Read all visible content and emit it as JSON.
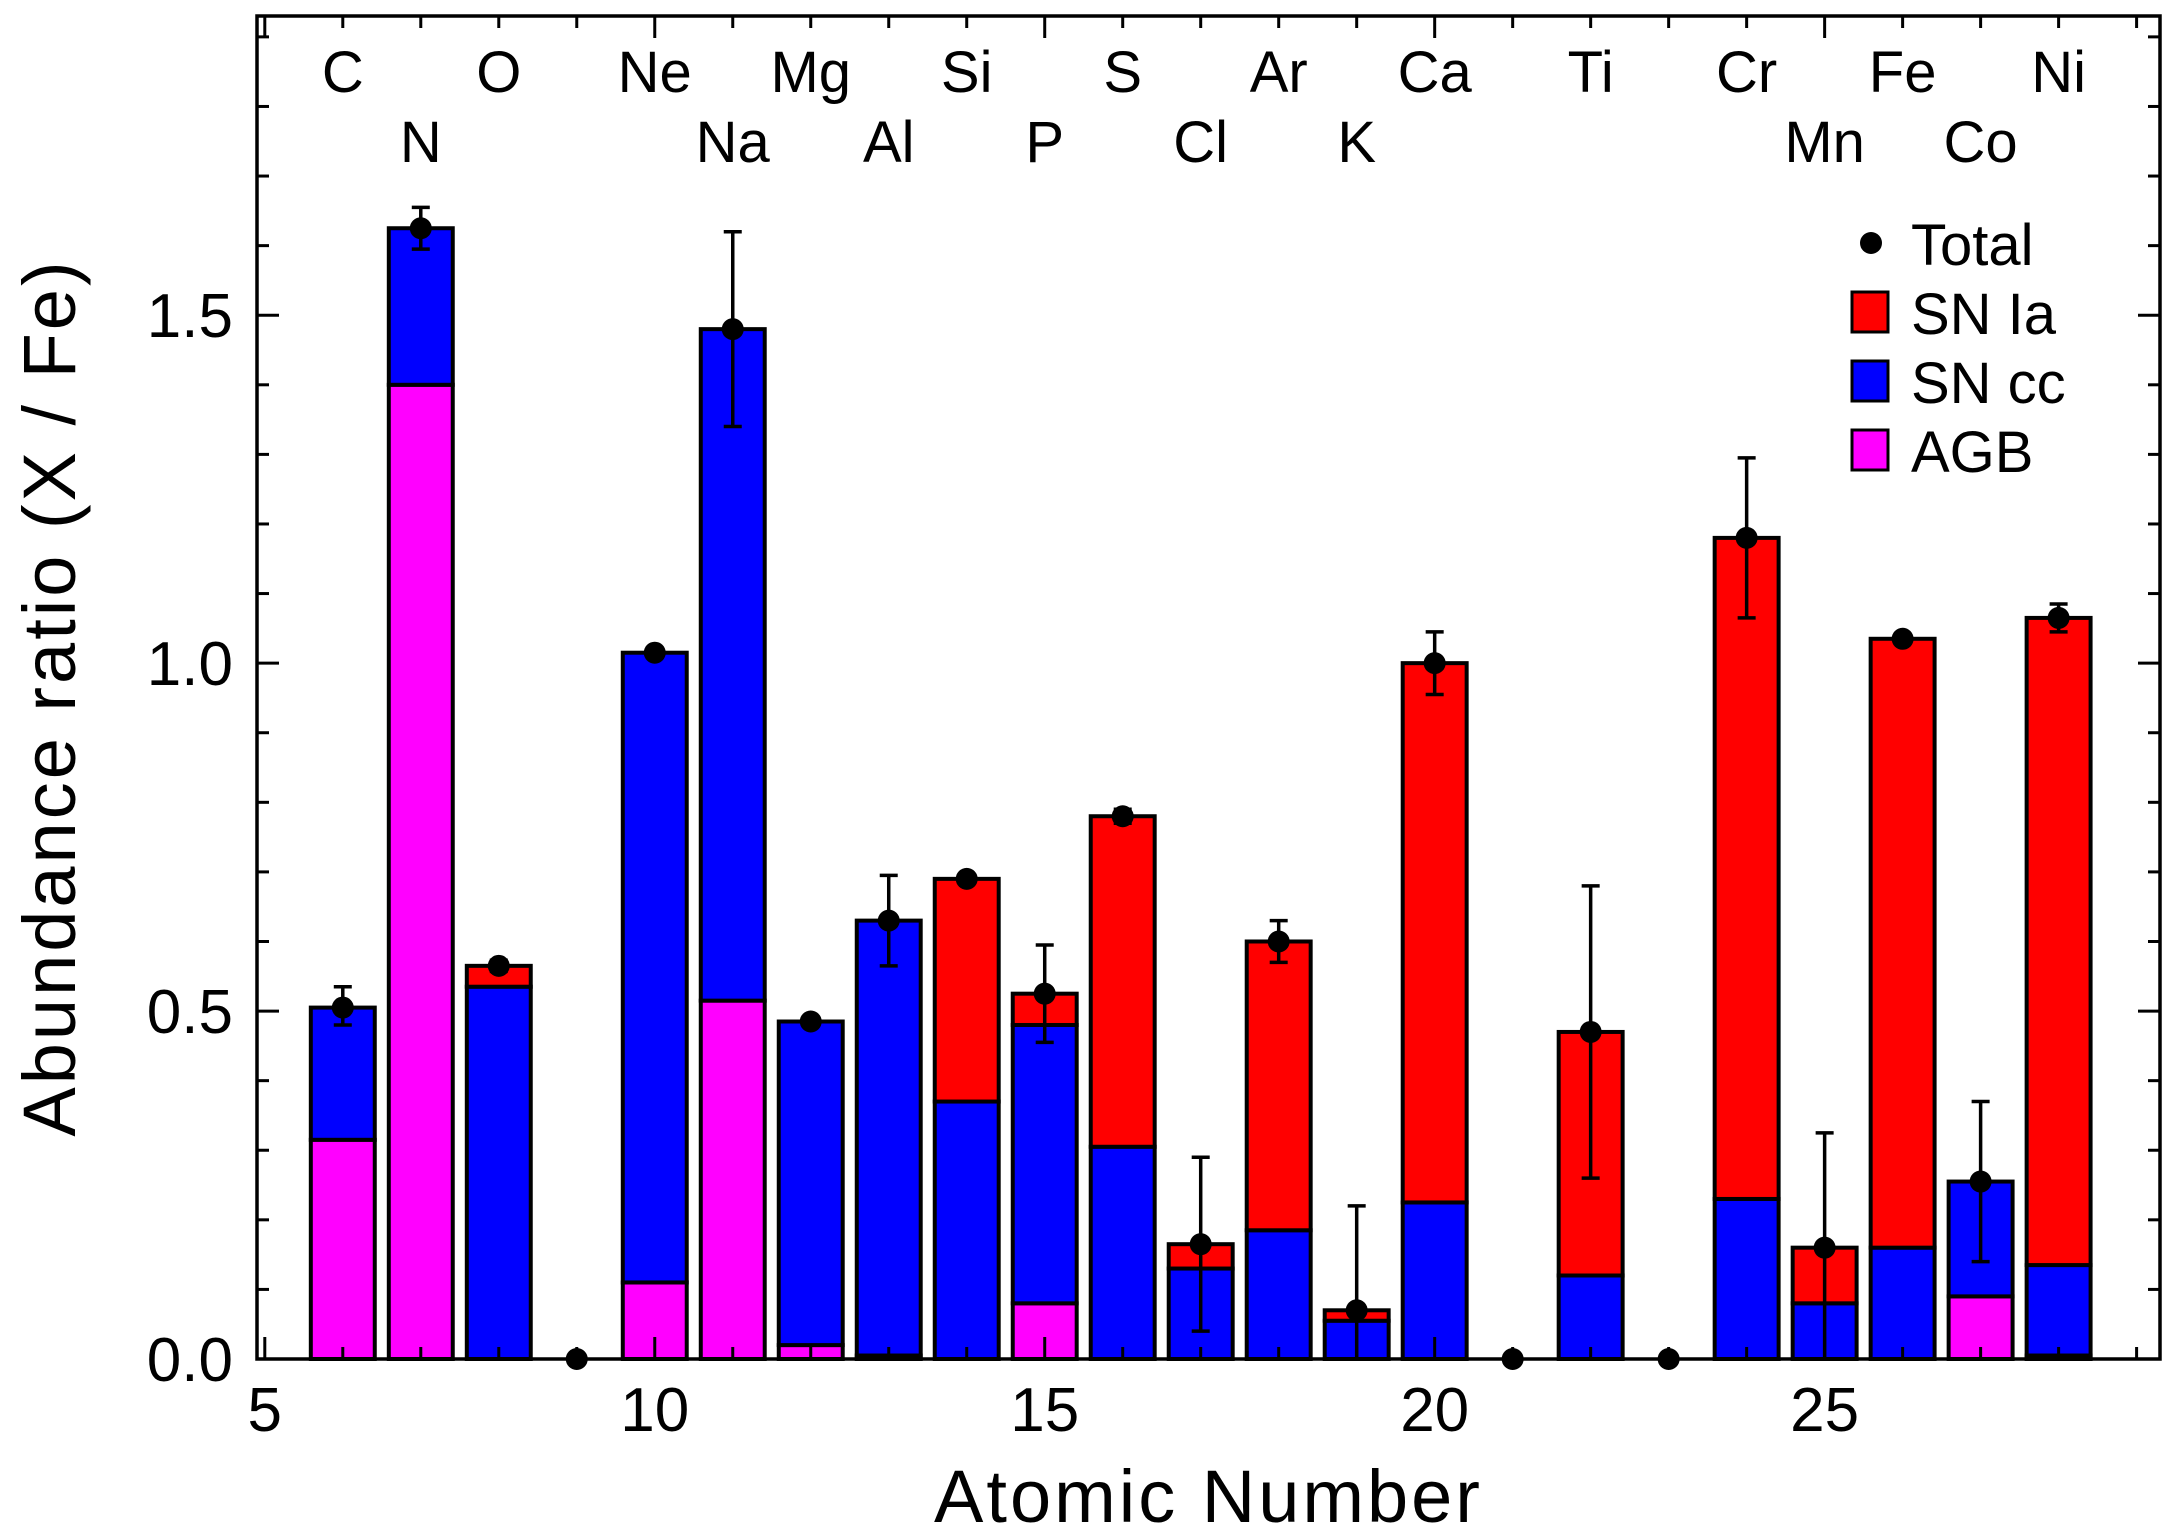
{
  "colors": {
    "agb": "#ff00ff",
    "sncc": "#0000ff",
    "snia": "#ff0000",
    "total": "#000000"
  },
  "chart_data": {
    "type": "bar",
    "stacked": true,
    "xlabel": "Atomic Number",
    "ylabel": "Abundance ratio (X / Fe)",
    "xlim": [
      4.9,
      29.3
    ],
    "ylim": [
      0.0,
      1.93
    ],
    "x_ticks": [
      5,
      10,
      15,
      20,
      25
    ],
    "y_ticks": [
      0.0,
      0.5,
      1.0,
      1.5
    ],
    "y_tick_labels": [
      "0.0",
      "0.5",
      "1.0",
      "1.5"
    ],
    "legend": {
      "position": "top-right",
      "entries": [
        {
          "key": "total",
          "label": "Total",
          "marker": "circle"
        },
        {
          "key": "snia",
          "label": "SN Ia",
          "marker": "box"
        },
        {
          "key": "sncc",
          "label": "SN cc",
          "marker": "box"
        },
        {
          "key": "agb",
          "label": "AGB",
          "marker": "box"
        }
      ]
    },
    "element_labels": [
      {
        "z": 6,
        "symbol": "C",
        "row": 1
      },
      {
        "z": 7,
        "symbol": "N",
        "row": 2
      },
      {
        "z": 8,
        "symbol": "O",
        "row": 1
      },
      {
        "z": 10,
        "symbol": "Ne",
        "row": 1
      },
      {
        "z": 11,
        "symbol": "Na",
        "row": 2
      },
      {
        "z": 12,
        "symbol": "Mg",
        "row": 1
      },
      {
        "z": 13,
        "symbol": "Al",
        "row": 2
      },
      {
        "z": 14,
        "symbol": "Si",
        "row": 1
      },
      {
        "z": 15,
        "symbol": "P",
        "row": 2
      },
      {
        "z": 16,
        "symbol": "S",
        "row": 1
      },
      {
        "z": 17,
        "symbol": "Cl",
        "row": 2
      },
      {
        "z": 18,
        "symbol": "Ar",
        "row": 1
      },
      {
        "z": 19,
        "symbol": "K",
        "row": 2
      },
      {
        "z": 20,
        "symbol": "Ca",
        "row": 1
      },
      {
        "z": 22,
        "symbol": "Ti",
        "row": 1
      },
      {
        "z": 24,
        "symbol": "Cr",
        "row": 1
      },
      {
        "z": 25,
        "symbol": "Mn",
        "row": 2
      },
      {
        "z": 26,
        "symbol": "Fe",
        "row": 1
      },
      {
        "z": 27,
        "symbol": "Co",
        "row": 2
      },
      {
        "z": 28,
        "symbol": "Ni",
        "row": 1
      }
    ],
    "series_order": [
      "agb",
      "sncc",
      "snia"
    ],
    "bars": [
      {
        "z": 6,
        "agb": 0.315,
        "sncc": 0.19,
        "snia": 0.0,
        "total": 0.505,
        "err_lo": 0.025,
        "err_hi": 0.03
      },
      {
        "z": 7,
        "agb": 1.4,
        "sncc": 0.225,
        "snia": 0.0,
        "total": 1.625,
        "err_lo": 0.03,
        "err_hi": 0.03
      },
      {
        "z": 8,
        "agb": 0.0,
        "sncc": 0.535,
        "snia": 0.03,
        "total": 0.565,
        "err_lo": 0.008,
        "err_hi": 0.008
      },
      {
        "z": 9,
        "agb": 0.0,
        "sncc": 0.0,
        "snia": 0.0,
        "total": 0.0,
        "err_lo": 0.0,
        "err_hi": 0.0
      },
      {
        "z": 10,
        "agb": 0.11,
        "sncc": 0.905,
        "snia": 0.0,
        "total": 1.015,
        "err_lo": 0.005,
        "err_hi": 0.005
      },
      {
        "z": 11,
        "agb": 0.515,
        "sncc": 0.965,
        "snia": 0.0,
        "total": 1.48,
        "err_lo": 0.14,
        "err_hi": 0.14
      },
      {
        "z": 12,
        "agb": 0.02,
        "sncc": 0.465,
        "snia": 0.0,
        "total": 0.485,
        "err_lo": 0.005,
        "err_hi": 0.005
      },
      {
        "z": 13,
        "agb": 0.005,
        "sncc": 0.625,
        "snia": 0.0,
        "total": 0.63,
        "err_lo": 0.065,
        "err_hi": 0.065
      },
      {
        "z": 14,
        "agb": 0.0,
        "sncc": 0.37,
        "snia": 0.32,
        "total": 0.69,
        "err_lo": 0.005,
        "err_hi": 0.005
      },
      {
        "z": 15,
        "agb": 0.08,
        "sncc": 0.4,
        "snia": 0.045,
        "total": 0.525,
        "err_lo": 0.07,
        "err_hi": 0.07
      },
      {
        "z": 16,
        "agb": 0.0,
        "sncc": 0.305,
        "snia": 0.475,
        "total": 0.78,
        "err_lo": 0.01,
        "err_hi": 0.01
      },
      {
        "z": 17,
        "agb": 0.0,
        "sncc": 0.13,
        "snia": 0.035,
        "total": 0.165,
        "err_lo": 0.125,
        "err_hi": 0.125
      },
      {
        "z": 18,
        "agb": 0.0,
        "sncc": 0.185,
        "snia": 0.415,
        "total": 0.6,
        "err_lo": 0.03,
        "err_hi": 0.03
      },
      {
        "z": 19,
        "agb": 0.0,
        "sncc": 0.055,
        "snia": 0.015,
        "total": 0.07,
        "err_lo": 0.07,
        "err_hi": 0.15
      },
      {
        "z": 20,
        "agb": 0.0,
        "sncc": 0.225,
        "snia": 0.775,
        "total": 1.0,
        "err_lo": 0.045,
        "err_hi": 0.045
      },
      {
        "z": 21,
        "agb": 0.0,
        "sncc": 0.0,
        "snia": 0.0,
        "total": 0.0,
        "err_lo": 0.0,
        "err_hi": 0.0
      },
      {
        "z": 22,
        "agb": 0.0,
        "sncc": 0.12,
        "snia": 0.35,
        "total": 0.47,
        "err_lo": 0.21,
        "err_hi": 0.21
      },
      {
        "z": 23,
        "agb": 0.0,
        "sncc": 0.0,
        "snia": 0.0,
        "total": 0.0,
        "err_lo": 0.0,
        "err_hi": 0.0
      },
      {
        "z": 24,
        "agb": 0.0,
        "sncc": 0.23,
        "snia": 0.95,
        "total": 1.18,
        "err_lo": 0.115,
        "err_hi": 0.115
      },
      {
        "z": 25,
        "agb": 0.0,
        "sncc": 0.08,
        "snia": 0.08,
        "total": 0.16,
        "err_lo": 0.16,
        "err_hi": 0.165
      },
      {
        "z": 26,
        "agb": 0.0,
        "sncc": 0.16,
        "snia": 0.875,
        "total": 1.035,
        "err_lo": 0.003,
        "err_hi": 0.003
      },
      {
        "z": 27,
        "agb": 0.09,
        "sncc": 0.165,
        "snia": 0.0,
        "total": 0.255,
        "err_lo": 0.115,
        "err_hi": 0.115
      },
      {
        "z": 28,
        "agb": 0.005,
        "sncc": 0.13,
        "snia": 0.93,
        "total": 1.065,
        "err_lo": 0.02,
        "err_hi": 0.02
      }
    ]
  }
}
